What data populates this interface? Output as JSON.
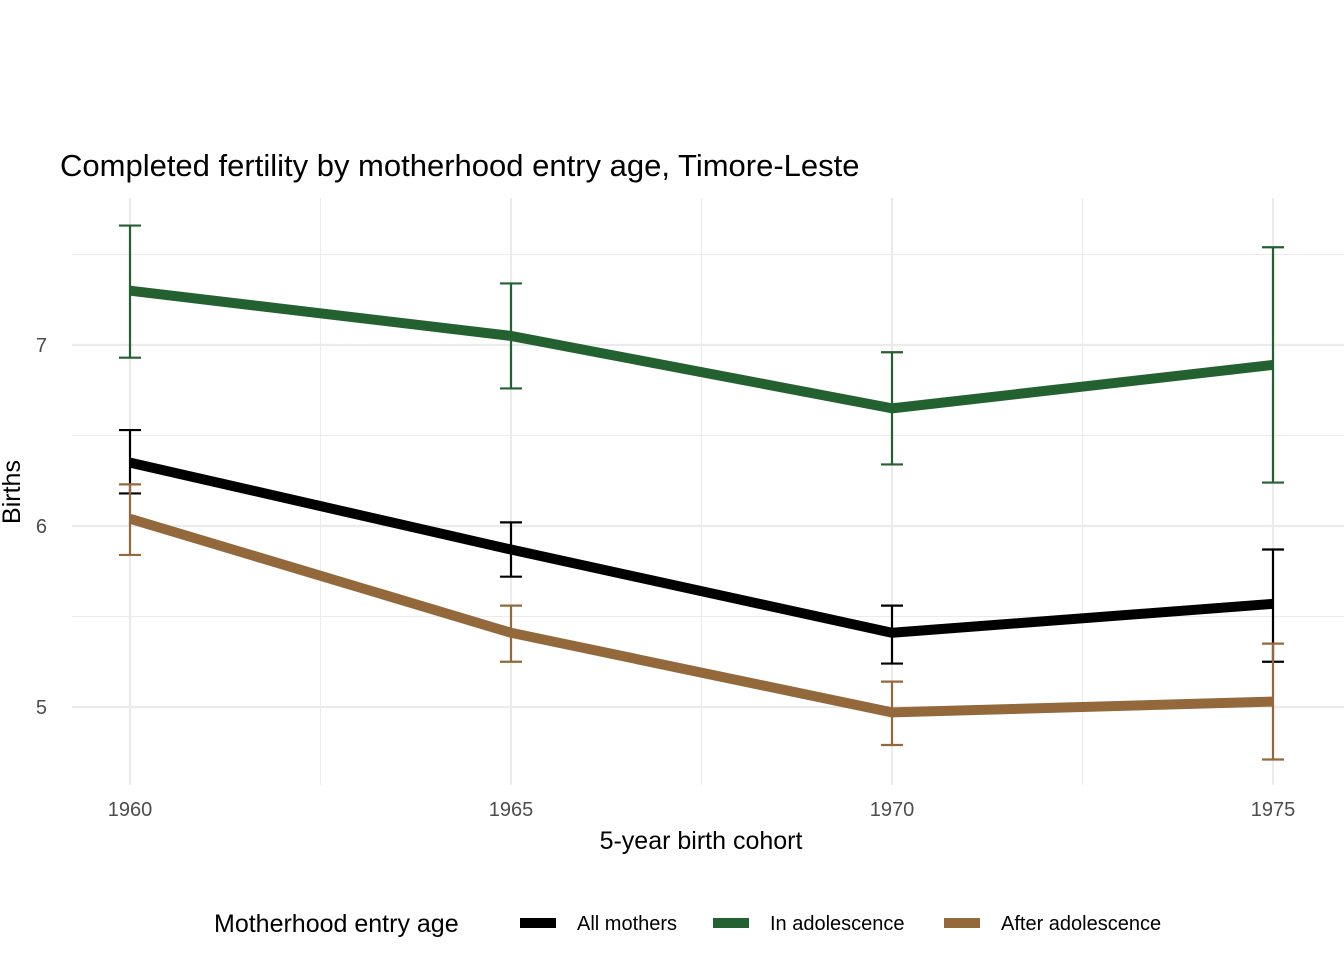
{
  "chart_data": {
    "type": "line",
    "title": "Completed fertility by motherhood entry age,  Timore-Leste",
    "xlabel": "5-year birth cohort",
    "ylabel": "Births",
    "x": [
      1960,
      1965,
      1970,
      1975
    ],
    "x_tick_labels": [
      "1960",
      "1965",
      "1970",
      "1975"
    ],
    "xlim": [
      1959.1,
      1975.9
    ],
    "y_ticks": [
      5,
      6,
      7
    ],
    "y_tick_labels": [
      "5",
      "6",
      "7"
    ],
    "ylim": [
      4.58,
      7.82
    ],
    "grid": true,
    "error_bars": true,
    "legend": {
      "title": "Motherhood entry age",
      "placement": "bottom"
    },
    "series": [
      {
        "name": "All mothers",
        "color": "#000000",
        "values": [
          6.35,
          5.87,
          5.41,
          5.57
        ],
        "lower": [
          6.18,
          5.72,
          5.24,
          5.25
        ],
        "upper": [
          6.53,
          6.02,
          5.56,
          5.87
        ]
      },
      {
        "name": "In adolescence",
        "color": "#246130",
        "values": [
          7.3,
          7.05,
          6.65,
          6.89
        ],
        "lower": [
          6.93,
          6.76,
          6.34,
          6.24
        ],
        "upper": [
          7.66,
          7.34,
          6.96,
          7.54
        ]
      },
      {
        "name": "After adolescence",
        "color": "#93693c",
        "values": [
          6.04,
          5.41,
          4.97,
          5.03
        ],
        "lower": [
          5.84,
          5.25,
          4.79,
          4.71
        ],
        "upper": [
          6.23,
          5.56,
          5.14,
          5.35
        ]
      }
    ]
  }
}
